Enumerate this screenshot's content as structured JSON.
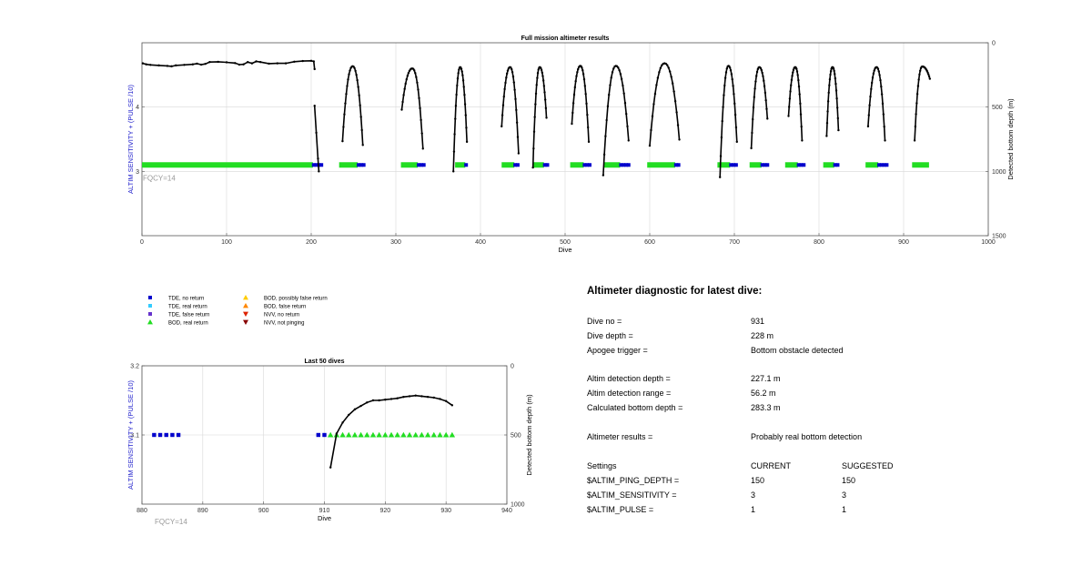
{
  "chart_data": [
    {
      "type": "line+scatter",
      "title": "Full mission altimeter results",
      "xlabel": "Dive",
      "ylabel_left": "ALTIM SENSITIVITY + (PULSE /10)",
      "ylabel_right": "Detected bottom depth (m)",
      "xlim": [
        0,
        1000
      ],
      "x_ticks": [
        0,
        100,
        200,
        300,
        400,
        500,
        600,
        700,
        800,
        900,
        1000
      ],
      "ylim_left": [
        2,
        5
      ],
      "left_ticks": [
        3,
        4
      ],
      "ylim_right": [
        1500,
        0
      ],
      "right_ticks": [
        0,
        500,
        1000,
        1500
      ],
      "grid": true,
      "annotation": "FQCY=14",
      "settings_level": 3.1,
      "flat_depth": [
        [
          1,
          160
        ],
        [
          5,
          168
        ],
        [
          10,
          172
        ],
        [
          20,
          176
        ],
        [
          30,
          180
        ],
        [
          35,
          183
        ],
        [
          40,
          176
        ],
        [
          50,
          172
        ],
        [
          60,
          168
        ],
        [
          65,
          162
        ],
        [
          70,
          170
        ],
        [
          75,
          164
        ],
        [
          80,
          150
        ],
        [
          90,
          148
        ],
        [
          100,
          152
        ],
        [
          110,
          158
        ],
        [
          115,
          170
        ],
        [
          120,
          168
        ],
        [
          125,
          150
        ],
        [
          130,
          160
        ],
        [
          135,
          145
        ],
        [
          140,
          150
        ],
        [
          150,
          162
        ],
        [
          160,
          160
        ],
        [
          170,
          160
        ],
        [
          180,
          147
        ],
        [
          190,
          142
        ],
        [
          200,
          140
        ],
        [
          203,
          145
        ],
        [
          204,
          205
        ]
      ],
      "drop_depth": [
        [
          204,
          490
        ],
        [
          206,
          700
        ],
        [
          208,
          900
        ],
        [
          209,
          1000
        ]
      ],
      "arches": [
        {
          "x0": 237,
          "x1": 261,
          "top": 183,
          "left_end": 765,
          "right_end": 795
        },
        {
          "x0": 307,
          "x1": 332,
          "top": 200,
          "left_end": 520,
          "right_end": 823
        },
        {
          "x0": 368,
          "x1": 384,
          "top": 190,
          "left_end": 1000,
          "right_end": 770
        },
        {
          "x0": 425,
          "x1": 445,
          "top": 190,
          "left_end": 650,
          "right_end": 860
        },
        {
          "x0": 462,
          "x1": 478,
          "top": 190,
          "left_end": 970,
          "right_end": 583
        },
        {
          "x0": 508,
          "x1": 528,
          "top": 180,
          "left_end": 630,
          "right_end": 770
        },
        {
          "x0": 545,
          "x1": 575,
          "top": 180,
          "left_end": 1030,
          "right_end": 760
        },
        {
          "x0": 600,
          "x1": 635,
          "top": 160,
          "left_end": 800,
          "right_end": 753
        },
        {
          "x0": 683,
          "x1": 703,
          "top": 180,
          "left_end": 1045,
          "right_end": 770
        },
        {
          "x0": 720,
          "x1": 739,
          "top": 190,
          "left_end": 820,
          "right_end": 590
        },
        {
          "x0": 764,
          "x1": 780,
          "top": 190,
          "left_end": 570,
          "right_end": 760
        },
        {
          "x0": 809,
          "x1": 823,
          "top": 190,
          "left_end": 725,
          "right_end": 680
        },
        {
          "x0": 858,
          "x1": 878,
          "top": 190,
          "left_end": 650,
          "right_end": 760
        },
        {
          "x0": 913,
          "x1": 931,
          "top": 185,
          "left_end": 760,
          "right_end": 280
        }
      ],
      "segments": [
        {
          "green": [
            0,
            202
          ],
          "blue": [
            203,
            214
          ]
        },
        {
          "green": [
            233,
            255
          ],
          "blue": [
            256,
            262
          ]
        },
        {
          "green": [
            306,
            326
          ],
          "blue": [
            327,
            333
          ]
        },
        {
          "green": [
            370,
            382
          ],
          "blue": [
            383,
            385
          ]
        },
        {
          "green": [
            425,
            440
          ],
          "blue": [
            441,
            446
          ]
        },
        {
          "green": [
            462,
            475
          ],
          "blue": [
            476,
            479
          ]
        },
        {
          "green": [
            506,
            522
          ],
          "blue": [
            523,
            529
          ]
        },
        {
          "green": [
            546,
            565
          ],
          "blue": [
            566,
            575
          ]
        },
        {
          "green": [
            597,
            630
          ],
          "blue": [
            631,
            636
          ]
        },
        {
          "green": [
            680,
            695
          ],
          "blue": [
            696,
            704
          ]
        },
        {
          "green": [
            718,
            732
          ],
          "blue": [
            733,
            740
          ]
        },
        {
          "green": [
            760,
            775
          ],
          "blue": [
            776,
            782
          ]
        },
        {
          "green": [
            805,
            818
          ],
          "blue": [
            819,
            824
          ]
        },
        {
          "green": [
            855,
            870
          ],
          "blue": [
            871,
            880
          ]
        },
        {
          "green": [
            910,
            930
          ],
          "blue": []
        }
      ]
    },
    {
      "type": "line+scatter",
      "title": "Last 50 dives",
      "xlabel": "Dive",
      "ylabel_left": "ALTIM SENSITIVITY + (PULSE /10)",
      "ylabel_right": "Detected bottom depth (m)",
      "xlim": [
        880,
        940
      ],
      "x_ticks": [
        880,
        890,
        900,
        910,
        920,
        930,
        940
      ],
      "ylim_left": [
        3,
        3.2
      ],
      "left_ticks": [
        3.1,
        3.2
      ],
      "ylim_right": [
        1000,
        0
      ],
      "right_ticks": [
        0,
        500,
        1000
      ],
      "grid": true,
      "annotation": "FQCY=14",
      "tde_dives": [
        882,
        883,
        884,
        885,
        886,
        909,
        910
      ],
      "bod_dives": [
        911,
        912,
        913,
        914,
        915,
        916,
        917,
        918,
        919,
        920,
        921,
        922,
        923,
        924,
        925,
        926,
        927,
        928,
        929,
        930,
        931
      ],
      "settings_level": 3.1,
      "depth": [
        [
          911,
          735
        ],
        [
          912,
          490
        ],
        [
          913,
          410
        ],
        [
          914,
          355
        ],
        [
          915,
          315
        ],
        [
          916,
          290
        ],
        [
          917,
          265
        ],
        [
          918,
          250
        ],
        [
          919,
          250
        ],
        [
          920,
          245
        ],
        [
          921,
          240
        ],
        [
          922,
          235
        ],
        [
          923,
          225
        ],
        [
          924,
          220
        ],
        [
          925,
          215
        ],
        [
          926,
          220
        ],
        [
          927,
          225
        ],
        [
          928,
          230
        ],
        [
          929,
          240
        ],
        [
          930,
          255
        ],
        [
          931,
          285
        ]
      ]
    }
  ],
  "legend": [
    {
      "label": "TDE, no return",
      "shape": "square",
      "color": "#0000cc"
    },
    {
      "label": "TDE, real return",
      "shape": "square",
      "color": "#33ccff"
    },
    {
      "label": "TDE, false return",
      "shape": "square",
      "color": "#6633cc"
    },
    {
      "label": "BOD, real return",
      "shape": "triangle-up",
      "color": "#22dd22"
    },
    {
      "label": "BOD, possibly false return",
      "shape": "triangle-up",
      "color": "#ffcc00"
    },
    {
      "label": "BOD, false return",
      "shape": "triangle-up",
      "color": "#ff8800"
    },
    {
      "label": "NVV, no return",
      "shape": "triangle-down",
      "color": "#dd2200"
    },
    {
      "label": "NVV, not pinging",
      "shape": "triangle-down",
      "color": "#880000"
    }
  ],
  "colors": {
    "axis_label_left": "#2222cc",
    "annotation": "#9a9a9a",
    "depth_line": "#000000",
    "grid": "#d8d8d8"
  },
  "diagnostic": {
    "title": "Altimeter diagnostic for latest dive:",
    "rows": [
      {
        "label": "Dive no =",
        "value": "931"
      },
      {
        "label": "Dive depth =",
        "value": "228 m"
      },
      {
        "label": "Apogee trigger =",
        "value": "Bottom obstacle detected"
      },
      {
        "label": "Altim detection depth =",
        "value": "227.1 m"
      },
      {
        "label": "Altim detection range =",
        "value": "56.2 m"
      },
      {
        "label": "Calculated bottom depth =",
        "value": "283.3 m"
      },
      {
        "label": "Altimeter results =",
        "value": "Probably real bottom detection"
      }
    ],
    "settings_header": {
      "label": "Settings",
      "current": "CURRENT",
      "suggested": "SUGGESTED"
    },
    "settings": [
      {
        "label": "$ALTIM_PING_DEPTH =",
        "current": "150",
        "suggested": "150"
      },
      {
        "label": "$ALTIM_SENSITIVITY =",
        "current": "3",
        "suggested": "3"
      },
      {
        "label": "$ALTIM_PULSE =",
        "current": "1",
        "suggested": "1"
      }
    ]
  }
}
